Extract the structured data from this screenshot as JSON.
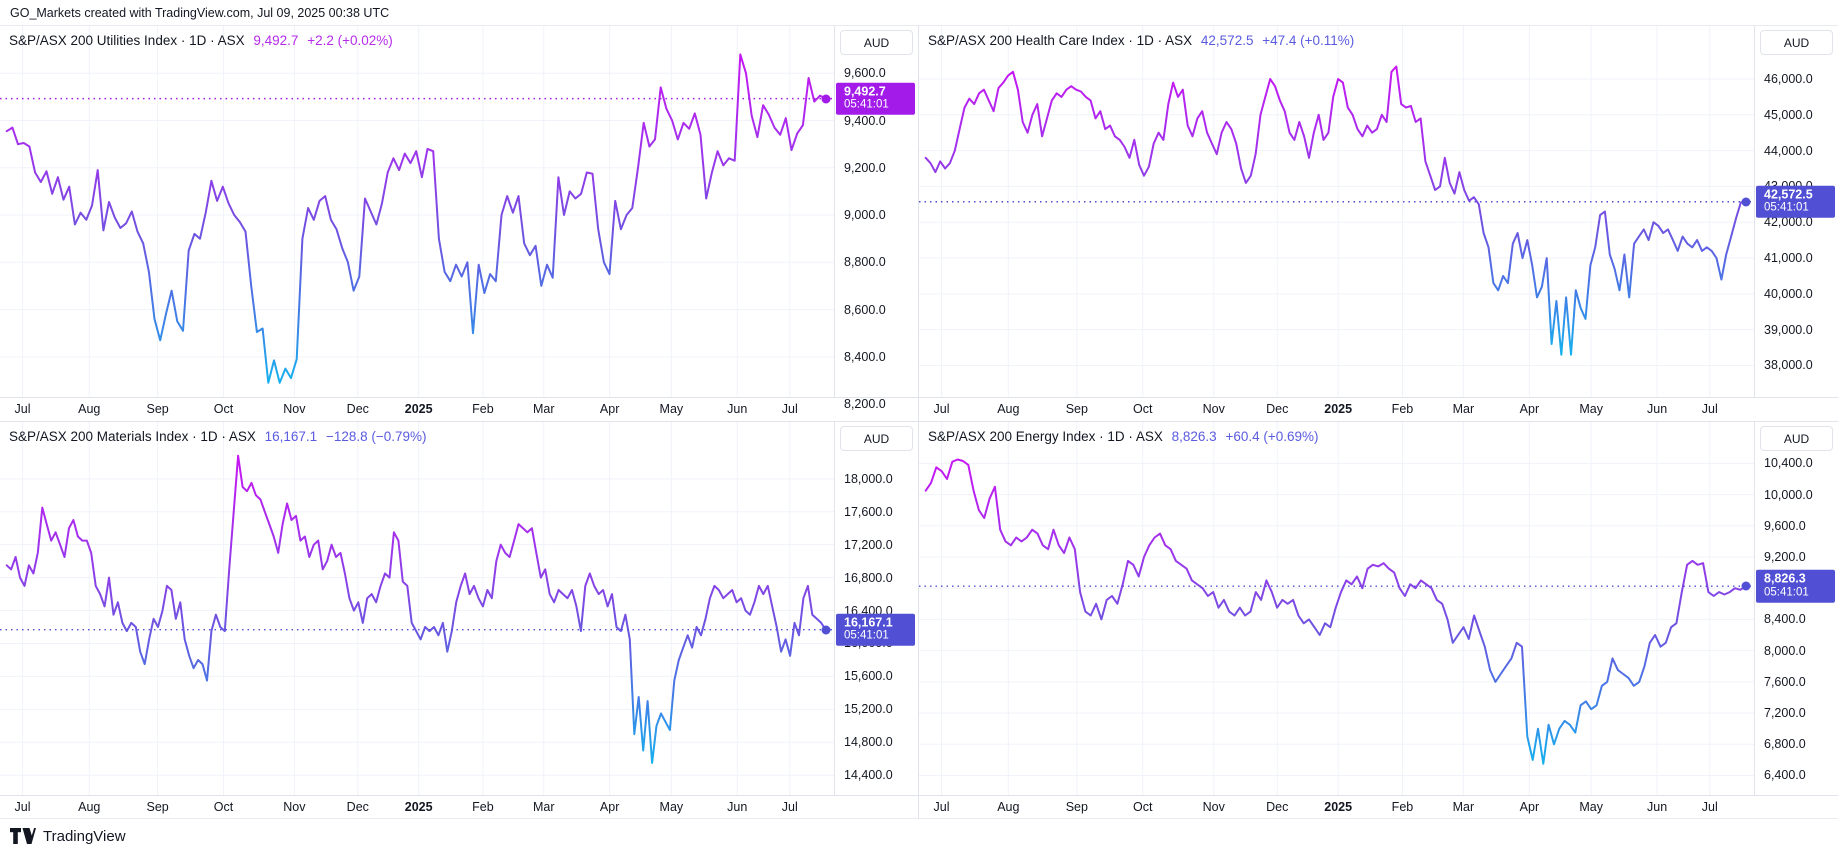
{
  "header": {
    "text": "GO_Markets created with TradingView.com, Jul 09, 2025 00:38 UTC"
  },
  "footer": {
    "brand": "TradingView"
  },
  "currency_label": "AUD",
  "badge_time": "05:41:01",
  "grid_color": "#F0F3FA",
  "line_gradient": {
    "stops": [
      "#C716F2",
      "#A132EC",
      "#6E53E0",
      "#3F7FE6",
      "#17B1EE"
    ],
    "offsets": [
      0,
      0.28,
      0.55,
      0.8,
      1
    ]
  },
  "x_ticks": {
    "labels": [
      "Jul",
      "Aug",
      "Sep",
      "Oct",
      "Nov",
      "Dec",
      "2025",
      "Feb",
      "Mar",
      "Apr",
      "May",
      "Jun",
      "Jul"
    ],
    "fractions": [
      0.027,
      0.107,
      0.189,
      0.268,
      0.353,
      0.429,
      0.502,
      0.579,
      0.652,
      0.731,
      0.805,
      0.884,
      0.947
    ],
    "bold_label": "2025"
  },
  "chart_data": [
    {
      "type": "line",
      "title": "S&P/ASX 200 Utilities Index · 1D · ASX",
      "last_price_label": "9,492.7",
      "change_label": "+2.2 (+0.02%)",
      "last_price": 9492.7,
      "accent": "#A21BE8",
      "title_value_color": "#B62BEA",
      "y_domain": [
        8230,
        9800
      ],
      "y_ticks": {
        "labels": [
          "9,600.0",
          "9,400.0",
          "9,200.0",
          "9,000.0",
          "8,800.0",
          "8,600.0",
          "8,400.0",
          "8,200.0"
        ],
        "values": [
          9600,
          9400,
          9200,
          9000,
          8800,
          8600,
          8400,
          8200
        ]
      },
      "values": [
        9355,
        9370,
        9300,
        9305,
        9290,
        9180,
        9140,
        9185,
        9090,
        9160,
        9065,
        9120,
        8960,
        9010,
        8980,
        9040,
        9190,
        8935,
        9055,
        8990,
        8945,
        8965,
        9015,
        8930,
        8880,
        8760,
        8560,
        8470,
        8580,
        8680,
        8550,
        8510,
        8850,
        8920,
        8900,
        9010,
        9145,
        9060,
        9120,
        9050,
        9000,
        8970,
        8930,
        8700,
        8505,
        8520,
        8290,
        8385,
        8290,
        8350,
        8310,
        8390,
        8900,
        9030,
        8980,
        9060,
        9080,
        8980,
        8940,
        8860,
        8800,
        8680,
        8740,
        9070,
        9015,
        8960,
        9050,
        9180,
        9240,
        9190,
        9260,
        9220,
        9270,
        9160,
        9280,
        9270,
        8900,
        8760,
        8720,
        8790,
        8740,
        8800,
        8500,
        8790,
        8670,
        8750,
        8720,
        9000,
        9080,
        9010,
        9080,
        8880,
        8830,
        8870,
        8700,
        8790,
        8735,
        9160,
        9000,
        9100,
        9070,
        9090,
        9180,
        9175,
        8940,
        8800,
        8750,
        9060,
        8940,
        9000,
        9030,
        9200,
        9390,
        9290,
        9320,
        9540,
        9450,
        9400,
        9320,
        9390,
        9365,
        9430,
        9340,
        9070,
        9180,
        9270,
        9210,
        9240,
        9230,
        9680,
        9600,
        9420,
        9330,
        9465,
        9425,
        9370,
        9340,
        9410,
        9275,
        9345,
        9380,
        9580,
        9480,
        9505,
        9493
      ]
    },
    {
      "type": "line",
      "title": "S&P/ASX 200 Health Care Index · 1D · ASX",
      "last_price_label": "42,572.5",
      "change_label": "+47.4 (+0.11%)",
      "last_price": 42572.5,
      "accent": "#514FD4",
      "title_value_color": "#5B5BE0",
      "y_domain": [
        37120,
        47480
      ],
      "y_ticks": {
        "labels": [
          "46,000.0",
          "45,000.0",
          "44,000.0",
          "43,000.0",
          "42,000.0",
          "41,000.0",
          "40,000.0",
          "39,000.0",
          "38,000.0"
        ],
        "values": [
          46000,
          45000,
          44000,
          43000,
          42000,
          41000,
          40000,
          39000,
          38000
        ]
      },
      "values": [
        43800,
        43650,
        43400,
        43700,
        43500,
        43650,
        44000,
        44600,
        45200,
        45450,
        45300,
        45600,
        45700,
        45400,
        45100,
        45750,
        45900,
        46100,
        46200,
        45700,
        44800,
        44500,
        45000,
        45300,
        44400,
        44900,
        45400,
        45600,
        45500,
        45700,
        45800,
        45700,
        45650,
        45500,
        45400,
        44900,
        45100,
        44600,
        44700,
        44400,
        44300,
        44100,
        43800,
        44300,
        43600,
        43300,
        43550,
        44200,
        44500,
        44300,
        45300,
        45900,
        45500,
        45700,
        44700,
        44400,
        44900,
        45100,
        44500,
        44200,
        43900,
        44500,
        44800,
        44600,
        44200,
        43500,
        43100,
        43300,
        43900,
        45000,
        45500,
        46000,
        45800,
        45400,
        45100,
        44500,
        44300,
        44800,
        44400,
        43800,
        44500,
        45000,
        44300,
        44500,
        45500,
        46000,
        45900,
        45200,
        45000,
        44600,
        44400,
        44700,
        44500,
        44600,
        45000,
        44800,
        46200,
        46350,
        45300,
        45200,
        45250,
        44800,
        44900,
        43700,
        43300,
        42900,
        43000,
        43800,
        43100,
        42800,
        43400,
        42900,
        42600,
        42700,
        42500,
        41700,
        41300,
        40300,
        40100,
        40500,
        40300,
        41400,
        41700,
        41000,
        41500,
        40800,
        39900,
        40200,
        41000,
        38600,
        39800,
        38300,
        39900,
        38300,
        40100,
        39600,
        39300,
        40800,
        41300,
        42200,
        42300,
        41100,
        40700,
        40100,
        41100,
        39900,
        41400,
        41600,
        41800,
        41500,
        42000,
        41900,
        41700,
        41800,
        41500,
        41200,
        41600,
        41400,
        41300,
        41500,
        41200,
        41300,
        41200,
        41000,
        40400,
        41100,
        41600,
        42100,
        42550,
        42572.5
      ]
    },
    {
      "type": "line",
      "title": "S&P/ASX 200 Materials Index · 1D · ASX",
      "last_price_label": "16,167.1",
      "change_label": "−128.8 (−0.79%)",
      "last_price": 16167.1,
      "accent": "#514FD4",
      "title_value_color": "#5B5BE0",
      "y_domain": [
        14160,
        18690
      ],
      "y_ticks": {
        "labels": [
          "18,000.0",
          "17,600.0",
          "17,200.0",
          "16,800.0",
          "16,400.0",
          "16,000.0",
          "15,600.0",
          "15,200.0",
          "14,800.0",
          "14,400.0"
        ],
        "values": [
          18000,
          17600,
          17200,
          16800,
          16400,
          16000,
          15600,
          15200,
          14800,
          14400
        ]
      },
      "values": [
        16950,
        16900,
        17050,
        16800,
        16700,
        16950,
        16850,
        17100,
        17650,
        17450,
        17250,
        17350,
        17200,
        17050,
        17400,
        17500,
        17300,
        17250,
        17250,
        17100,
        16700,
        16600,
        16450,
        16800,
        16350,
        16500,
        16250,
        16150,
        16250,
        16200,
        15900,
        15750,
        16050,
        16300,
        16200,
        16400,
        16700,
        16650,
        16300,
        16500,
        16050,
        15850,
        15700,
        15800,
        15750,
        15550,
        16150,
        16350,
        16200,
        16150,
        16900,
        17600,
        18280,
        17900,
        17850,
        17950,
        17800,
        17750,
        17600,
        17450,
        17300,
        17100,
        17450,
        17700,
        17500,
        17550,
        17250,
        17300,
        17050,
        17200,
        17250,
        16900,
        17000,
        17200,
        17050,
        17100,
        16850,
        16550,
        16400,
        16500,
        16250,
        16550,
        16600,
        16500,
        16700,
        16850,
        16800,
        17350,
        17250,
        16750,
        16700,
        16250,
        16150,
        16050,
        16200,
        16150,
        16200,
        16100,
        16250,
        15900,
        16150,
        16500,
        16700,
        16850,
        16600,
        16700,
        16550,
        16450,
        16650,
        16550,
        17000,
        17200,
        17100,
        17050,
        17250,
        17450,
        17400,
        17350,
        17400,
        17100,
        16800,
        16900,
        16600,
        16500,
        16650,
        16600,
        16550,
        16650,
        16450,
        16150,
        16700,
        16850,
        16700,
        16600,
        16650,
        16450,
        16600,
        16200,
        16150,
        16350,
        16050,
        14900,
        15350,
        14700,
        15300,
        14550,
        15000,
        15150,
        15050,
        14950,
        15550,
        15800,
        15950,
        16100,
        15950,
        16200,
        16100,
        16300,
        16550,
        16700,
        16650,
        16550,
        16600,
        16650,
        16500,
        16550,
        16400,
        16350,
        16500,
        16700,
        16600,
        16700,
        16450,
        16200,
        15900,
        16050,
        15850,
        16250,
        16100,
        16550,
        16700,
        16350,
        16300,
        16250,
        16167.1
      ]
    },
    {
      "type": "line",
      "title": "S&P/ASX 200 Energy Index · 1D · ASX",
      "last_price_label": "8,826.3",
      "change_label": "+60.4 (+0.69%)",
      "last_price": 8826.3,
      "accent": "#514FD4",
      "title_value_color": "#5B5BE0",
      "y_domain": [
        6150,
        10930
      ],
      "y_ticks": {
        "labels": [
          "10,400.0",
          "10,000.0",
          "9,600.0",
          "9,200.0",
          "8,800.0",
          "8,400.0",
          "8,000.0",
          "7,600.0",
          "7,200.0",
          "6,800.0",
          "6,400.0"
        ],
        "values": [
          10400,
          10000,
          9600,
          9200,
          8800,
          8400,
          8000,
          7600,
          7200,
          6800,
          6400
        ]
      },
      "values": [
        10050,
        10150,
        10350,
        10300,
        10200,
        10420,
        10450,
        10430,
        10380,
        10050,
        9800,
        9700,
        9950,
        10100,
        9550,
        9400,
        9350,
        9450,
        9400,
        9450,
        9550,
        9500,
        9350,
        9300,
        9550,
        9350,
        9250,
        9450,
        9300,
        8750,
        8500,
        8450,
        8600,
        8400,
        8650,
        8700,
        8600,
        8850,
        9150,
        9100,
        8950,
        9200,
        9350,
        9450,
        9500,
        9350,
        9300,
        9150,
        9100,
        9050,
        8900,
        8850,
        8800,
        8700,
        8750,
        8550,
        8650,
        8500,
        8450,
        8550,
        8450,
        8500,
        8750,
        8650,
        8900,
        8750,
        8550,
        8650,
        8600,
        8650,
        8450,
        8350,
        8400,
        8300,
        8200,
        8350,
        8300,
        8550,
        8750,
        8900,
        8850,
        8950,
        8800,
        9050,
        9100,
        9080,
        9120,
        9050,
        9000,
        8800,
        8700,
        8850,
        8800,
        8900,
        8850,
        8800,
        8650,
        8600,
        8400,
        8100,
        8200,
        8300,
        8150,
        8450,
        8250,
        8050,
        7750,
        7600,
        7700,
        7800,
        7900,
        8100,
        8050,
        6900,
        6600,
        7000,
        6550,
        7050,
        6800,
        7000,
        7100,
        7050,
        6950,
        7300,
        7350,
        7250,
        7300,
        7550,
        7600,
        7900,
        7750,
        7700,
        7650,
        7550,
        7600,
        7800,
        8100,
        8200,
        8050,
        8100,
        8300,
        8350,
        8750,
        9100,
        9150,
        9100,
        9120,
        8750,
        8700,
        8750,
        8720,
        8750,
        8800,
        8780,
        8826.3
      ]
    }
  ],
  "series_x_range": [
    0.008,
    0.99
  ]
}
